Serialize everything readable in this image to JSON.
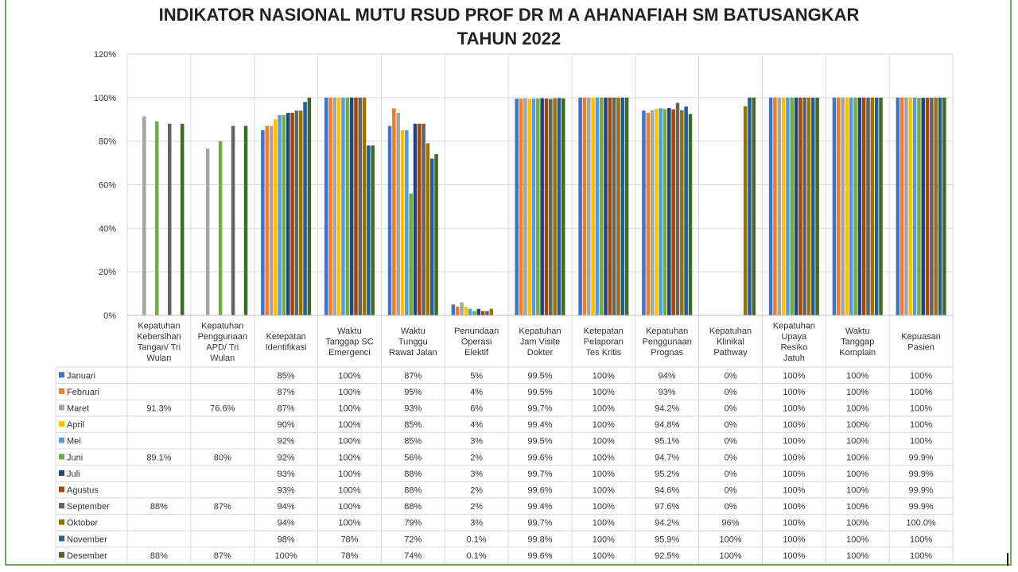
{
  "chart_data": {
    "type": "bar",
    "title": "INDIKATOR NASIONAL MUTU RSUD PROF DR M A AHANAFIAH SM BATUSANGKAR",
    "subtitle": "TAHUN 2022",
    "ylim": [
      0,
      1.2
    ],
    "y_ticks": [
      "0%",
      "20%",
      "40%",
      "60%",
      "80%",
      "100%",
      "120%"
    ],
    "grid": true,
    "legend": "data-table-left",
    "categories": [
      [
        "Kepatuhan",
        "Kebersihan",
        "Tangan/ Tri",
        "Wulan"
      ],
      [
        "Kepatuhan",
        "Penggunaan",
        "APD/ Tri",
        "Wulan"
      ],
      [
        "Ketepatan",
        "Identifikasi"
      ],
      [
        "Waktu",
        "Tanggap SC",
        "Emergenci"
      ],
      [
        "Waktu",
        "Tunggu",
        "Rawat Jalan"
      ],
      [
        "Penundaan",
        "Operasi",
        "Elektif"
      ],
      [
        "Kepatuhan",
        "Jam Visite",
        "Dokter"
      ],
      [
        "Ketepatan",
        "Pelaporan",
        "Tes Kritis"
      ],
      [
        "Kepatuhan",
        "Penggunaan",
        "Prognas"
      ],
      [
        "Kepatuhan",
        "Klinikal",
        "Pathway"
      ],
      [
        "Kepatuhan",
        "Upaya",
        "Resiko",
        "Jatuh"
      ],
      [
        "Waktu",
        "Tanggap",
        "Komplain"
      ],
      [
        "Kepuasan",
        "Pasien"
      ]
    ],
    "series": [
      {
        "name": "Januari",
        "color": "#4472c4",
        "values": [
          null,
          null,
          0.85,
          1.0,
          0.87,
          0.05,
          0.995,
          1.0,
          0.94,
          0.0,
          1.0,
          1.0,
          1.0
        ],
        "labels": [
          "",
          "",
          "85%",
          "100%",
          "87%",
          "5%",
          "99.5%",
          "100%",
          "94%",
          "0%",
          "100%",
          "100%",
          "100%"
        ]
      },
      {
        "name": "Februari",
        "color": "#ed7d31",
        "values": [
          null,
          null,
          0.87,
          1.0,
          0.95,
          0.04,
          0.995,
          1.0,
          0.93,
          0.0,
          1.0,
          1.0,
          1.0
        ],
        "labels": [
          "",
          "",
          "87%",
          "100%",
          "95%",
          "4%",
          "99.5%",
          "100%",
          "93%",
          "0%",
          "100%",
          "100%",
          "100%"
        ]
      },
      {
        "name": "Maret",
        "color": "#a5a5a5",
        "values": [
          0.913,
          0.766,
          0.87,
          1.0,
          0.93,
          0.06,
          0.997,
          1.0,
          0.942,
          0.0,
          1.0,
          1.0,
          1.0
        ],
        "labels": [
          "91.3%",
          "76.6%",
          "87%",
          "100%",
          "93%",
          "6%",
          "99.7%",
          "100%",
          "94.2%",
          "0%",
          "100%",
          "100%",
          "100%"
        ]
      },
      {
        "name": "April",
        "color": "#ffc000",
        "values": [
          null,
          null,
          0.9,
          1.0,
          0.85,
          0.04,
          0.994,
          1.0,
          0.948,
          0.0,
          1.0,
          1.0,
          1.0
        ],
        "labels": [
          "",
          "",
          "90%",
          "100%",
          "85%",
          "4%",
          "99.4%",
          "100%",
          "94.8%",
          "0%",
          "100%",
          "100%",
          "100%"
        ]
      },
      {
        "name": "Mei",
        "color": "#5b9bd5",
        "values": [
          null,
          null,
          0.92,
          1.0,
          0.85,
          0.03,
          0.995,
          1.0,
          0.951,
          0.0,
          1.0,
          1.0,
          1.0
        ],
        "labels": [
          "",
          "",
          "92%",
          "100%",
          "85%",
          "3%",
          "99.5%",
          "100%",
          "95.1%",
          "0%",
          "100%",
          "100%",
          "100%"
        ]
      },
      {
        "name": "Juni",
        "color": "#70ad47",
        "values": [
          0.891,
          0.8,
          0.92,
          1.0,
          0.56,
          0.02,
          0.996,
          1.0,
          0.947,
          0.0,
          1.0,
          1.0,
          0.999
        ],
        "labels": [
          "89.1%",
          "80%",
          "92%",
          "100%",
          "56%",
          "2%",
          "99.6%",
          "100%",
          "94.7%",
          "0%",
          "100%",
          "100%",
          "99.9%"
        ]
      },
      {
        "name": "Juli",
        "color": "#264478",
        "values": [
          null,
          null,
          0.93,
          1.0,
          0.88,
          0.03,
          0.997,
          1.0,
          0.952,
          0.0,
          1.0,
          1.0,
          0.999
        ],
        "labels": [
          "",
          "",
          "93%",
          "100%",
          "88%",
          "3%",
          "99.7%",
          "100%",
          "95.2%",
          "0%",
          "100%",
          "100%",
          "99.9%"
        ]
      },
      {
        "name": "Agustus",
        "color": "#9e480e",
        "values": [
          null,
          null,
          0.93,
          1.0,
          0.88,
          0.02,
          0.996,
          1.0,
          0.946,
          0.0,
          1.0,
          1.0,
          0.999
        ],
        "labels": [
          "",
          "",
          "93%",
          "100%",
          "88%",
          "2%",
          "99.6%",
          "100%",
          "94.6%",
          "0%",
          "100%",
          "100%",
          "99.9%"
        ]
      },
      {
        "name": "September",
        "color": "#636363",
        "values": [
          0.88,
          0.87,
          0.94,
          1.0,
          0.88,
          0.02,
          0.994,
          1.0,
          0.976,
          0.0,
          1.0,
          1.0,
          0.999
        ],
        "labels": [
          "88%",
          "87%",
          "94%",
          "100%",
          "88%",
          "2%",
          "99.4%",
          "100%",
          "97.6%",
          "0%",
          "100%",
          "100%",
          "99.9%"
        ]
      },
      {
        "name": "Oktober",
        "color": "#997300",
        "values": [
          null,
          null,
          0.94,
          1.0,
          0.79,
          0.03,
          0.997,
          1.0,
          0.942,
          0.96,
          1.0,
          1.0,
          1.0
        ],
        "labels": [
          "",
          "",
          "94%",
          "100%",
          "79%",
          "3%",
          "99.7%",
          "100%",
          "94.2%",
          "96%",
          "100%",
          "100%",
          "100.0%"
        ]
      },
      {
        "name": "November",
        "color": "#255e91",
        "values": [
          null,
          null,
          0.98,
          0.78,
          0.72,
          0.001,
          0.998,
          1.0,
          0.959,
          1.0,
          1.0,
          1.0,
          1.0
        ],
        "labels": [
          "",
          "",
          "98%",
          "78%",
          "72%",
          "0.1%",
          "99.8%",
          "100%",
          "95.9%",
          "100%",
          "100%",
          "100%",
          "100%"
        ]
      },
      {
        "name": "Desember",
        "color": "#43682b",
        "values": [
          0.88,
          0.87,
          1.0,
          0.78,
          0.74,
          0.001,
          0.996,
          1.0,
          0.925,
          1.0,
          1.0,
          1.0,
          1.0
        ],
        "labels": [
          "88%",
          "87%",
          "100%",
          "78%",
          "74%",
          "0.1%",
          "99.6%",
          "100%",
          "92.5%",
          "100%",
          "100%",
          "100%",
          "100%"
        ]
      }
    ]
  }
}
